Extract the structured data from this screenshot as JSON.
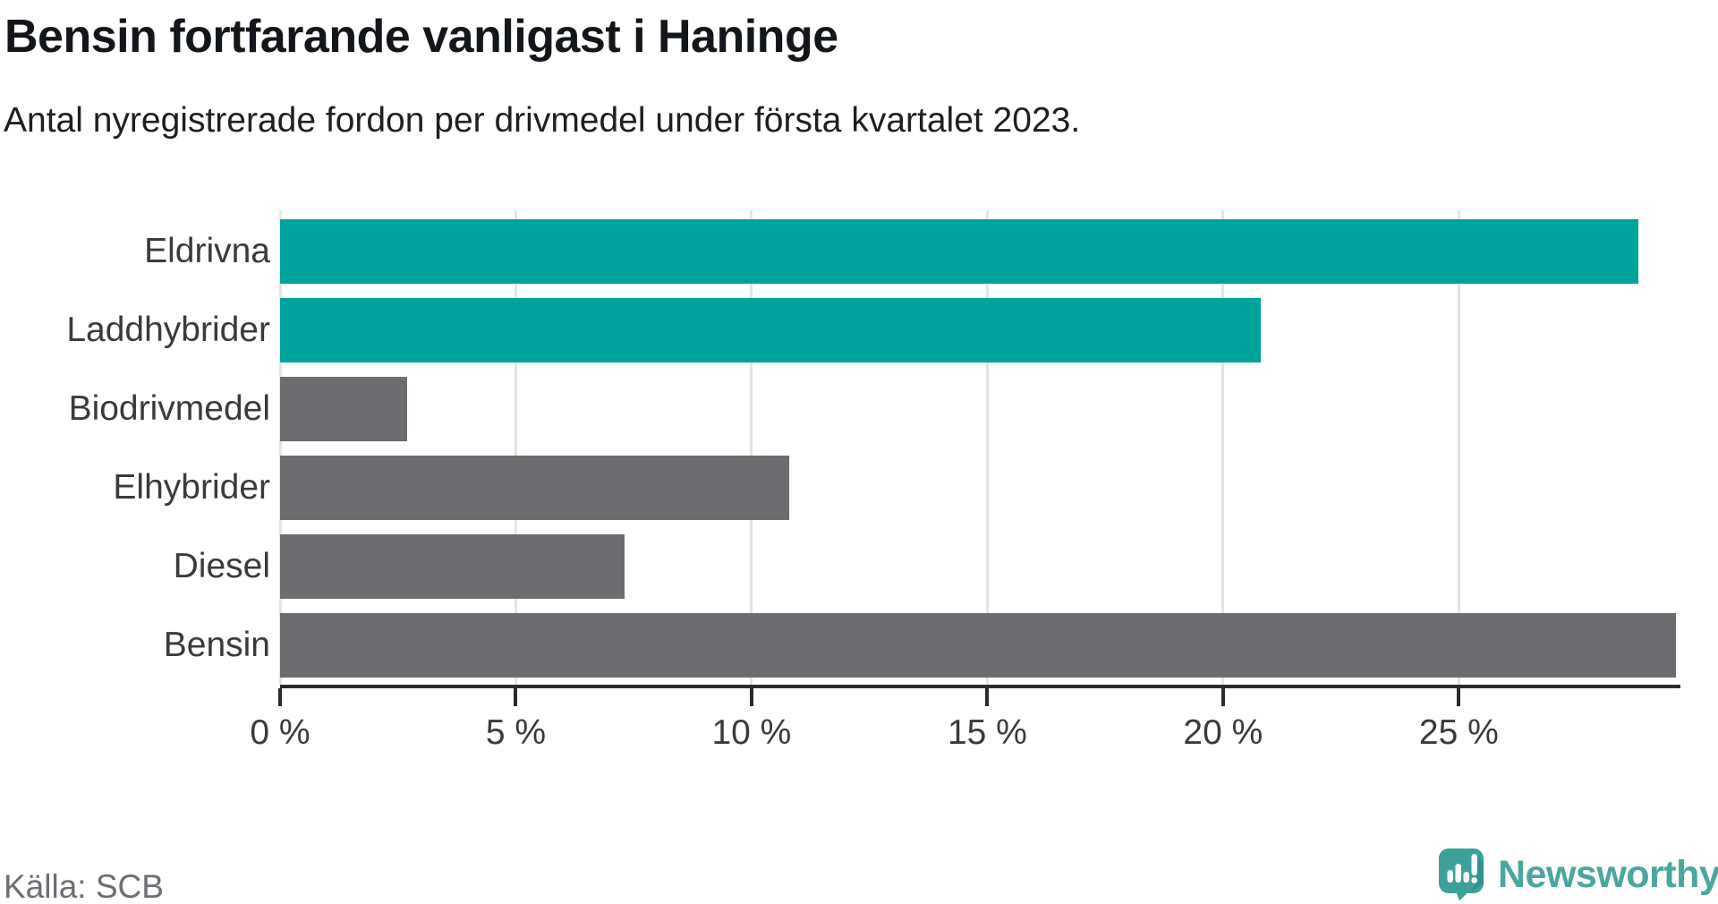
{
  "header": {
    "title": "Bensin fortfarande vanligast i Haninge",
    "subtitle": "Antal nyregistrerade fordon per drivmedel under första kvartalet 2023."
  },
  "chart_data": {
    "type": "bar",
    "orientation": "horizontal",
    "title": "Bensin fortfarande vanligast i Haninge",
    "subtitle": "Antal nyregistrerade fordon per drivmedel under första kvartalet 2023.",
    "categories": [
      "Eldrivna",
      "Laddhybrider",
      "Biodrivmedel",
      "Elhybrider",
      "Diesel",
      "Bensin"
    ],
    "values": [
      28.8,
      20.8,
      2.7,
      10.8,
      7.3,
      29.6
    ],
    "unit": "%",
    "bar_colors": [
      "#00a39b",
      "#00a39b",
      "#6c6c71",
      "#6c6c71",
      "#6c6c71",
      "#6c6c71"
    ],
    "highlight_color": "#00a39b",
    "default_color": "#6c6c71",
    "xlabel": "",
    "ylabel": "",
    "xlim": [
      0,
      29.7
    ],
    "xticks": [
      0,
      5,
      10,
      15,
      20,
      25
    ],
    "xtick_labels": [
      "0 %",
      "5 %",
      "10 %",
      "15 %",
      "20 %",
      "25 %"
    ],
    "grid": true,
    "legend": "none"
  },
  "footer": {
    "source": "Källa: SCB",
    "brand": "Newsworthy"
  },
  "colors": {
    "grid": "#e4e4e4",
    "axis": "#2b2b2b",
    "text": "#3a3a3a",
    "brand_teal": "#4aa6a0"
  }
}
